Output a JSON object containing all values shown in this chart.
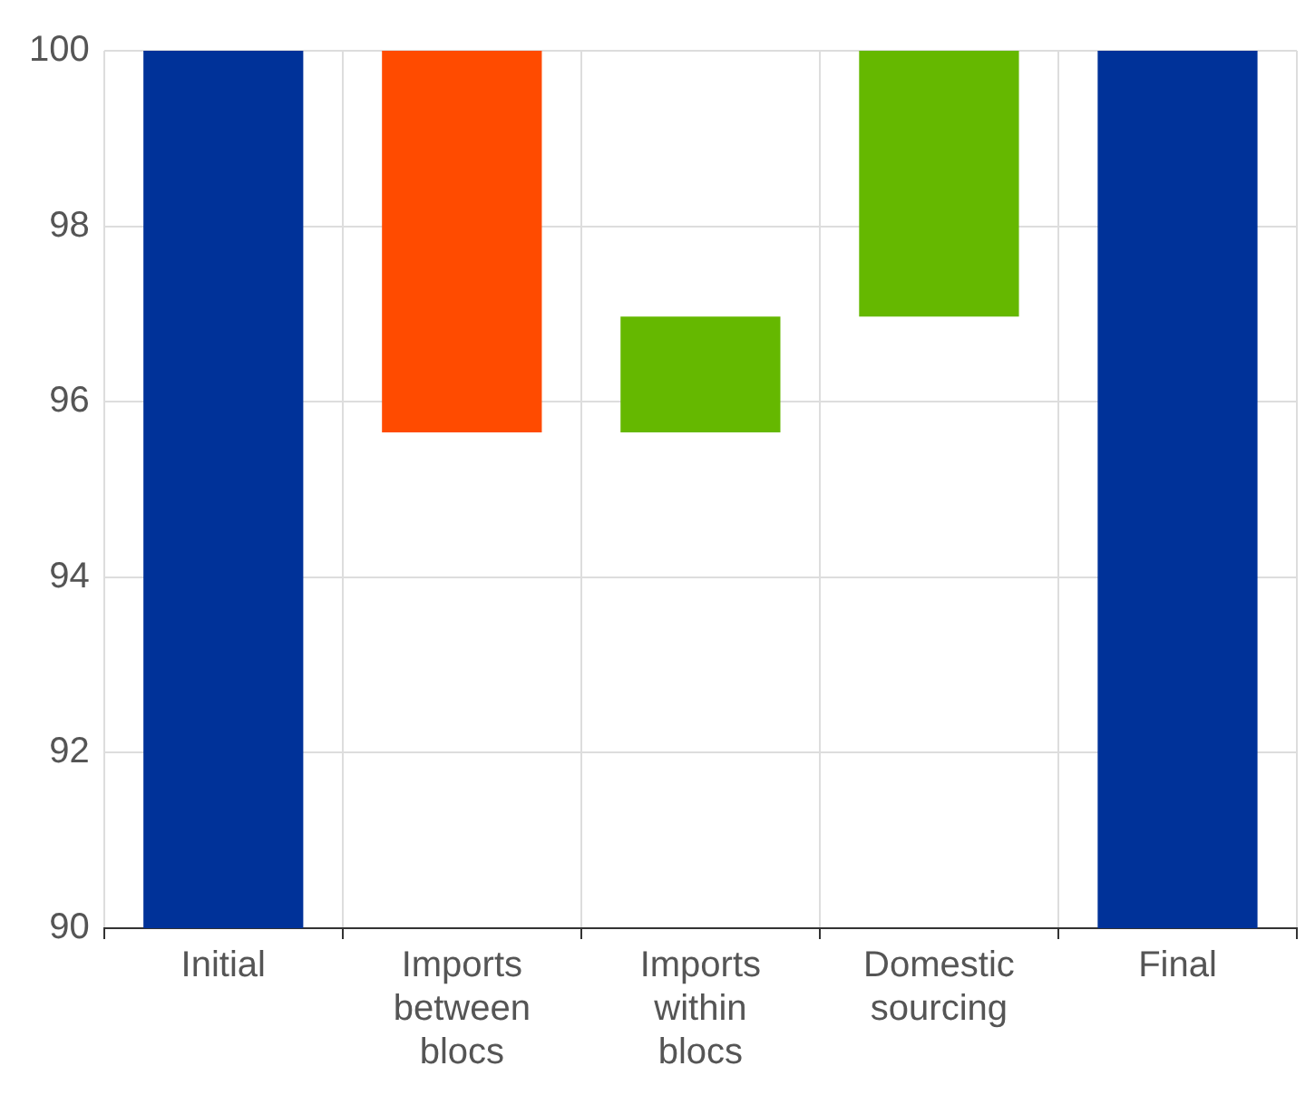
{
  "chart_data": {
    "type": "bar",
    "categories": [
      "Initial",
      "Imports between blocs",
      "Imports within blocs",
      "Domestic sourcing",
      "Final"
    ],
    "values": [
      10,
      4.35,
      1.32,
      3.03,
      10
    ],
    "base": [
      90,
      95.65,
      95.65,
      96.97,
      90
    ],
    "colors": [
      "#003299",
      "#ff4b00",
      "#65b800",
      "#65b800",
      "#003299"
    ],
    "ylim": [
      90,
      100
    ],
    "yticks": [
      90,
      92,
      94,
      96,
      98,
      100
    ],
    "grid": true
  }
}
